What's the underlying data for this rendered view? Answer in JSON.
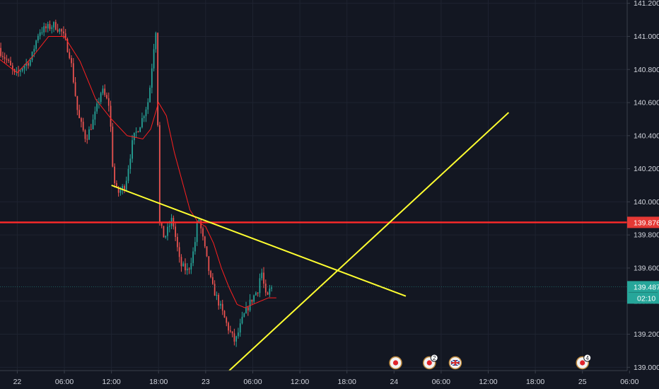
{
  "chart_data": {
    "type": "candlestick",
    "y_axis": {
      "range": [
        138.98,
        141.22
      ],
      "ticks": [
        "141.200",
        "141.000",
        "140.800",
        "140.600",
        "140.400",
        "140.200",
        "140.000",
        "139.800",
        "139.600",
        "139.400",
        "139.200",
        "139.000"
      ]
    },
    "x_axis": {
      "range_hours": [
        -2.2,
        77.7
      ],
      "ticks": [
        {
          "label": "22",
          "h": 0
        },
        {
          "label": "06:00",
          "h": 6
        },
        {
          "label": "12:00",
          "h": 12
        },
        {
          "label": "18:00",
          "h": 18
        },
        {
          "label": "23",
          "h": 24
        },
        {
          "label": "06:00",
          "h": 30
        },
        {
          "label": "12:00",
          "h": 36
        },
        {
          "label": "18:00",
          "h": 42
        },
        {
          "label": "24",
          "h": 48
        },
        {
          "label": "06:00",
          "h": 54
        },
        {
          "label": "12:00",
          "h": 60
        },
        {
          "label": "18:00",
          "h": 66
        },
        {
          "label": "25",
          "h": 72
        },
        {
          "label": "06:00",
          "h": 78
        }
      ]
    },
    "anchors": [
      [
        -2.2,
        140.93
      ],
      [
        -1,
        140.85
      ],
      [
        0,
        140.76
      ],
      [
        1,
        140.82
      ],
      [
        2,
        140.86
      ],
      [
        2.5,
        140.95
      ],
      [
        3,
        141.03
      ],
      [
        4,
        141.05
      ],
      [
        5,
        141.07
      ],
      [
        6,
        141.02
      ],
      [
        7,
        140.88
      ],
      [
        8,
        140.52
      ],
      [
        9,
        140.38
      ],
      [
        10,
        140.5
      ],
      [
        11,
        140.68
      ],
      [
        12,
        140.58
      ],
      [
        12.5,
        140.14
      ],
      [
        13,
        140.05
      ],
      [
        14,
        140.1
      ],
      [
        15,
        140.38
      ],
      [
        16,
        140.48
      ],
      [
        17,
        140.62
      ],
      [
        17.6,
        140.92
      ],
      [
        18,
        141.08
      ],
      [
        18.3,
        139.88
      ],
      [
        19,
        139.78
      ],
      [
        20,
        139.9
      ],
      [
        21,
        139.62
      ],
      [
        22,
        139.58
      ],
      [
        22.8,
        139.72
      ],
      [
        23.3,
        139.92
      ],
      [
        24,
        139.75
      ],
      [
        25,
        139.5
      ],
      [
        26,
        139.38
      ],
      [
        27,
        139.25
      ],
      [
        28,
        139.15
      ],
      [
        29,
        139.3
      ],
      [
        30,
        139.4
      ],
      [
        31,
        139.48
      ],
      [
        31.3,
        139.6
      ],
      [
        32,
        139.4
      ],
      [
        32.5,
        139.48
      ]
    ],
    "moving_average": [
      [
        -2.2,
        140.86
      ],
      [
        0,
        140.78
      ],
      [
        2,
        140.88
      ],
      [
        4,
        141.0
      ],
      [
        6,
        141.0
      ],
      [
        8,
        140.85
      ],
      [
        10,
        140.62
      ],
      [
        12,
        140.5
      ],
      [
        14,
        140.4
      ],
      [
        16,
        140.38
      ],
      [
        17,
        140.44
      ],
      [
        18,
        140.6
      ],
      [
        19,
        140.52
      ],
      [
        20,
        140.3
      ],
      [
        22,
        139.95
      ],
      [
        23,
        139.88
      ],
      [
        24,
        139.85
      ],
      [
        25,
        139.75
      ],
      [
        26,
        139.6
      ],
      [
        27,
        139.48
      ],
      [
        28,
        139.38
      ],
      [
        29,
        139.36
      ],
      [
        30,
        139.38
      ],
      [
        31,
        139.4
      ],
      [
        32,
        139.42
      ],
      [
        33,
        139.42
      ]
    ],
    "trendlines": [
      {
        "from": [
          12,
          140.1
        ],
        "to": [
          49.5,
          139.43
        ]
      },
      {
        "from": [
          27,
          138.98
        ],
        "to": [
          62.6,
          140.54
        ]
      }
    ],
    "horizontal_line": {
      "value": 139.876,
      "label": "139.876"
    },
    "current_price": {
      "value": 139.487,
      "label": "139.487",
      "countdown": "02:10"
    },
    "colors": {
      "up": "#26a69a",
      "down": "#ef5350",
      "ma": "#ff2020",
      "trend": "#ffff30",
      "hline": "#ff2a2a",
      "grid": "#1e2330"
    },
    "events": [
      {
        "h": 48.2,
        "icon": "flag-japan-icon",
        "badge": ""
      },
      {
        "h": 52.5,
        "icon": "flag-japan-icon",
        "badge": "2"
      },
      {
        "h": 55.8,
        "icon": "flag-uk-icon",
        "badge": ""
      },
      {
        "h": 72.0,
        "icon": "flag-japan-icon",
        "badge": "4"
      }
    ]
  }
}
